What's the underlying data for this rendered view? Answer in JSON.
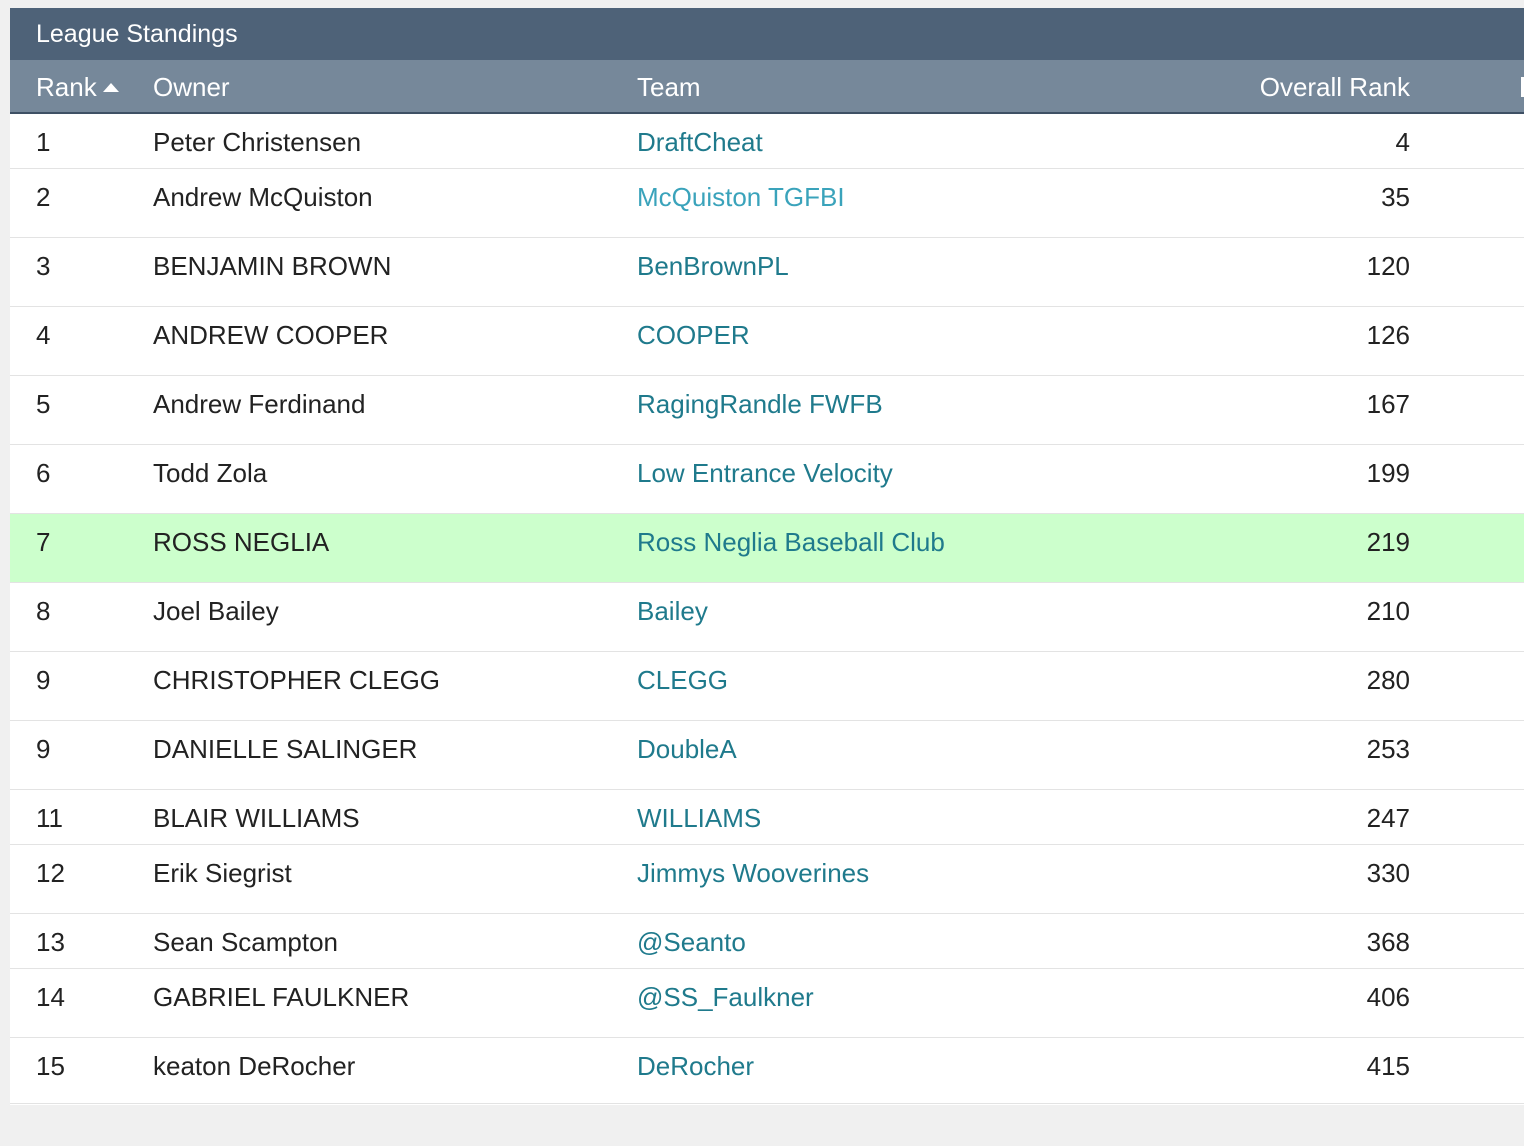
{
  "title": "League Standings",
  "columns": {
    "rank": "Rank",
    "owner": "Owner",
    "team": "Team",
    "overall": "Overall Rank"
  },
  "sort": {
    "column": "rank",
    "direction": "ascending",
    "icon": "sort-ascending-icon"
  },
  "colors": {
    "title_bar": "#4e6278",
    "header_row": "#76889a",
    "team_link": "#1f7a8c",
    "highlight_row": "#ccffcc"
  },
  "rows": [
    {
      "rank": "1",
      "owner": "Peter Christensen",
      "team": "DraftCheat",
      "overall": "4"
    },
    {
      "rank": "2",
      "owner": "Andrew McQuiston",
      "team": "McQuiston TGFBI",
      "overall": "35"
    },
    {
      "rank": "3",
      "owner": "BENJAMIN BROWN",
      "team": "BenBrownPL",
      "overall": "120"
    },
    {
      "rank": "4",
      "owner": "ANDREW COOPER",
      "team": "COOPER",
      "overall": "126"
    },
    {
      "rank": "5",
      "owner": "Andrew Ferdinand",
      "team": "RagingRandle FWFB",
      "overall": "167"
    },
    {
      "rank": "6",
      "owner": "Todd Zola",
      "team": "Low Entrance Velocity",
      "overall": "199"
    },
    {
      "rank": "7",
      "owner": "ROSS NEGLIA",
      "team": "Ross Neglia Baseball Club",
      "overall": "219",
      "highlighted": true
    },
    {
      "rank": "8",
      "owner": "Joel Bailey",
      "team": "Bailey",
      "overall": "210"
    },
    {
      "rank": "9",
      "owner": "CHRISTOPHER CLEGG",
      "team": "CLEGG",
      "overall": "280"
    },
    {
      "rank": "9",
      "owner": "DANIELLE SALINGER",
      "team": "DoubleA",
      "overall": "253"
    },
    {
      "rank": "11",
      "owner": "BLAIR WILLIAMS",
      "team": "WILLIAMS",
      "overall": "247"
    },
    {
      "rank": "12",
      "owner": "Erik Siegrist",
      "team": "Jimmys Wooverines",
      "overall": "330"
    },
    {
      "rank": "13",
      "owner": "Sean Scampton",
      "team": "@Seanto",
      "overall": "368"
    },
    {
      "rank": "14",
      "owner": "GABRIEL FAULKNER",
      "team": "@SS_Faulkner",
      "overall": "406"
    },
    {
      "rank": "15",
      "owner": "keaton DeRocher",
      "team": "DeRocher",
      "overall": "415"
    }
  ]
}
